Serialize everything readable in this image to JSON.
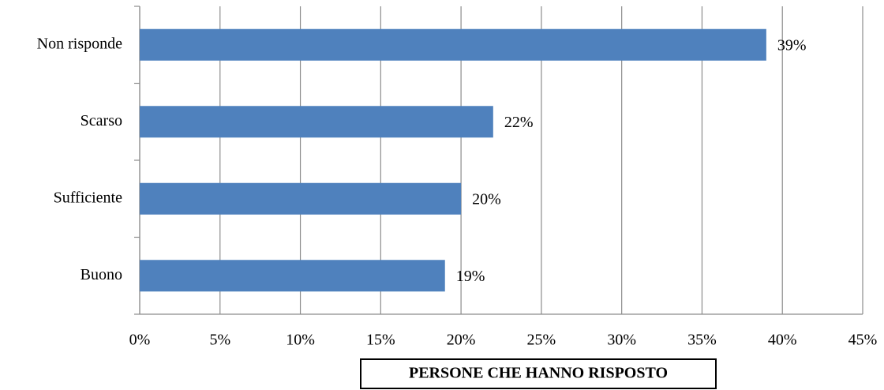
{
  "chart_data": {
    "type": "hbar",
    "categories": [
      "Non risponde",
      "Scarso",
      "Sufficiente",
      "Buono"
    ],
    "values": [
      39,
      22,
      20,
      19
    ],
    "value_labels": [
      "39%",
      "22%",
      "20%",
      "19%"
    ],
    "color": "#4f81bd",
    "x_label": "PERSONE CHE HANNO RISPOSTO",
    "xlim": [
      0,
      45
    ],
    "xticks": [
      {
        "value": 0,
        "label": "0%"
      },
      {
        "value": 5,
        "label": "5%"
      },
      {
        "value": 10,
        "label": "10%"
      },
      {
        "value": 15,
        "label": "15%"
      },
      {
        "value": 20,
        "label": "20%"
      },
      {
        "value": 25,
        "label": "25%"
      },
      {
        "value": 30,
        "label": "30%"
      },
      {
        "value": 35,
        "label": "35%"
      },
      {
        "value": 40,
        "label": "40%"
      },
      {
        "value": 45,
        "label": "45%"
      }
    ],
    "grid": true
  }
}
